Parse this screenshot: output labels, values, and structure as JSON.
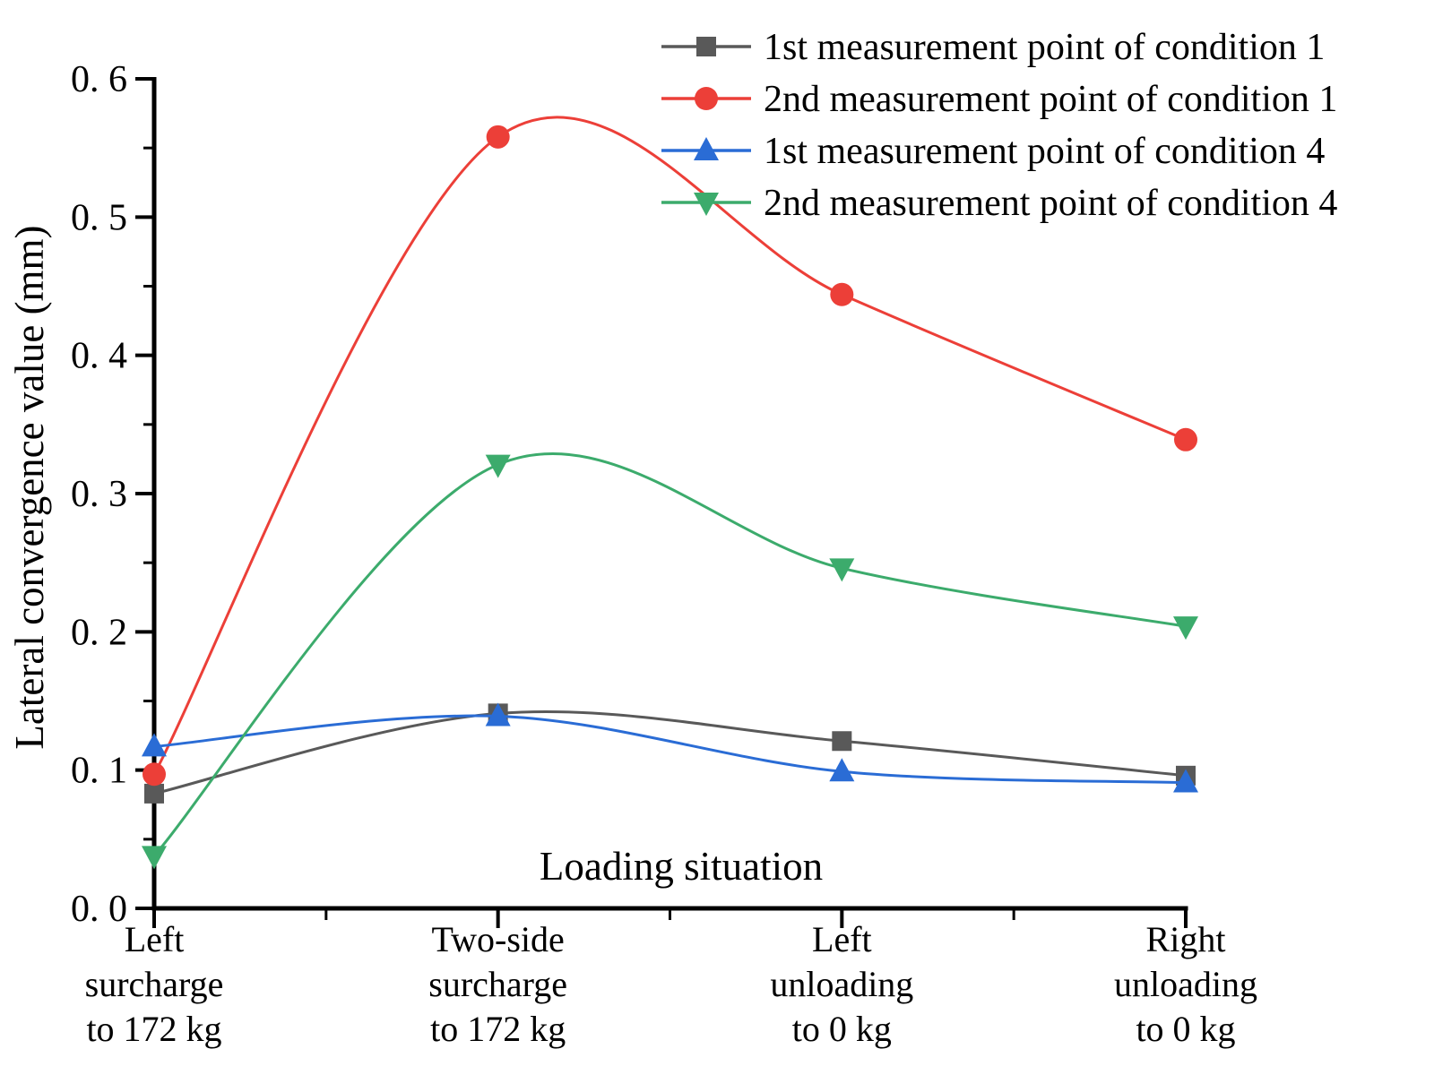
{
  "chart_data": {
    "type": "line",
    "title": "",
    "xlabel": "Loading situation",
    "ylabel": "Lateral convergence value (mm)",
    "ylim": [
      0.0,
      0.6
    ],
    "ytick_step": 0.1,
    "yminor_step": 0.05,
    "ytick_labels": [
      "0. 0",
      "0. 1",
      "0. 2",
      "0. 3",
      "0. 4",
      "0. 5",
      "0. 6"
    ],
    "grid": false,
    "legend_position": "top-right-inside",
    "categories": [
      "Left\nsurcharge\nto 172 kg",
      "Two-side\nsurcharge\nto 172 kg",
      "Left\nunloading\nto 0 kg",
      "Right\nunloading\nto 0 kg"
    ],
    "series": [
      {
        "name": "1st measurement point of condition 1",
        "color": "#595959",
        "marker": "square",
        "values": [
          0.083,
          0.141,
          0.121,
          0.096
        ]
      },
      {
        "name": "2nd measurement point of condition 1",
        "color": "#ec3f38",
        "marker": "circle",
        "values": [
          0.097,
          0.558,
          0.444,
          0.339
        ]
      },
      {
        "name": "1st measurement point of condition 4",
        "color": "#2a6cd5",
        "marker": "triangle-up",
        "values": [
          0.117,
          0.139,
          0.099,
          0.091
        ]
      },
      {
        "name": "2nd measurement point of condition 4",
        "color": "#3cab6c",
        "marker": "triangle-down",
        "values": [
          0.038,
          0.321,
          0.246,
          0.204
        ]
      }
    ]
  }
}
